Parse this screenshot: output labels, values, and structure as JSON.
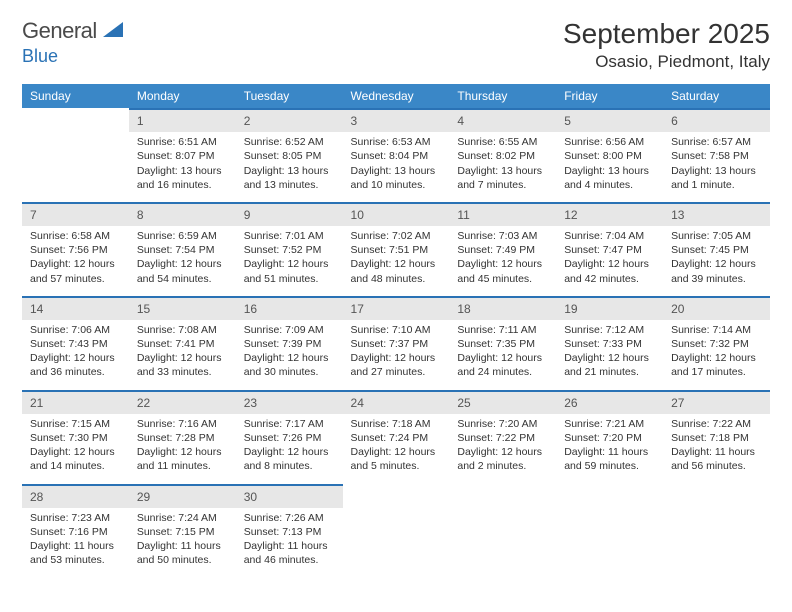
{
  "brand": {
    "general": "General",
    "blue": "Blue"
  },
  "title": {
    "month": "September 2025",
    "location": "Osasio, Piedmont, Italy"
  },
  "colors": {
    "header_bg": "#3a87c7",
    "border_top": "#2a72b5",
    "daynum_bg": "#e7e7e7",
    "text": "#333333",
    "logo_blue": "#2a72b5"
  },
  "weekdays": [
    "Sunday",
    "Monday",
    "Tuesday",
    "Wednesday",
    "Thursday",
    "Friday",
    "Saturday"
  ],
  "weeks": [
    [
      null,
      {
        "n": "1",
        "sr": "Sunrise: 6:51 AM",
        "ss": "Sunset: 8:07 PM",
        "dl": "Daylight: 13 hours and 16 minutes."
      },
      {
        "n": "2",
        "sr": "Sunrise: 6:52 AM",
        "ss": "Sunset: 8:05 PM",
        "dl": "Daylight: 13 hours and 13 minutes."
      },
      {
        "n": "3",
        "sr": "Sunrise: 6:53 AM",
        "ss": "Sunset: 8:04 PM",
        "dl": "Daylight: 13 hours and 10 minutes."
      },
      {
        "n": "4",
        "sr": "Sunrise: 6:55 AM",
        "ss": "Sunset: 8:02 PM",
        "dl": "Daylight: 13 hours and 7 minutes."
      },
      {
        "n": "5",
        "sr": "Sunrise: 6:56 AM",
        "ss": "Sunset: 8:00 PM",
        "dl": "Daylight: 13 hours and 4 minutes."
      },
      {
        "n": "6",
        "sr": "Sunrise: 6:57 AM",
        "ss": "Sunset: 7:58 PM",
        "dl": "Daylight: 13 hours and 1 minute."
      }
    ],
    [
      {
        "n": "7",
        "sr": "Sunrise: 6:58 AM",
        "ss": "Sunset: 7:56 PM",
        "dl": "Daylight: 12 hours and 57 minutes."
      },
      {
        "n": "8",
        "sr": "Sunrise: 6:59 AM",
        "ss": "Sunset: 7:54 PM",
        "dl": "Daylight: 12 hours and 54 minutes."
      },
      {
        "n": "9",
        "sr": "Sunrise: 7:01 AM",
        "ss": "Sunset: 7:52 PM",
        "dl": "Daylight: 12 hours and 51 minutes."
      },
      {
        "n": "10",
        "sr": "Sunrise: 7:02 AM",
        "ss": "Sunset: 7:51 PM",
        "dl": "Daylight: 12 hours and 48 minutes."
      },
      {
        "n": "11",
        "sr": "Sunrise: 7:03 AM",
        "ss": "Sunset: 7:49 PM",
        "dl": "Daylight: 12 hours and 45 minutes."
      },
      {
        "n": "12",
        "sr": "Sunrise: 7:04 AM",
        "ss": "Sunset: 7:47 PM",
        "dl": "Daylight: 12 hours and 42 minutes."
      },
      {
        "n": "13",
        "sr": "Sunrise: 7:05 AM",
        "ss": "Sunset: 7:45 PM",
        "dl": "Daylight: 12 hours and 39 minutes."
      }
    ],
    [
      {
        "n": "14",
        "sr": "Sunrise: 7:06 AM",
        "ss": "Sunset: 7:43 PM",
        "dl": "Daylight: 12 hours and 36 minutes."
      },
      {
        "n": "15",
        "sr": "Sunrise: 7:08 AM",
        "ss": "Sunset: 7:41 PM",
        "dl": "Daylight: 12 hours and 33 minutes."
      },
      {
        "n": "16",
        "sr": "Sunrise: 7:09 AM",
        "ss": "Sunset: 7:39 PM",
        "dl": "Daylight: 12 hours and 30 minutes."
      },
      {
        "n": "17",
        "sr": "Sunrise: 7:10 AM",
        "ss": "Sunset: 7:37 PM",
        "dl": "Daylight: 12 hours and 27 minutes."
      },
      {
        "n": "18",
        "sr": "Sunrise: 7:11 AM",
        "ss": "Sunset: 7:35 PM",
        "dl": "Daylight: 12 hours and 24 minutes."
      },
      {
        "n": "19",
        "sr": "Sunrise: 7:12 AM",
        "ss": "Sunset: 7:33 PM",
        "dl": "Daylight: 12 hours and 21 minutes."
      },
      {
        "n": "20",
        "sr": "Sunrise: 7:14 AM",
        "ss": "Sunset: 7:32 PM",
        "dl": "Daylight: 12 hours and 17 minutes."
      }
    ],
    [
      {
        "n": "21",
        "sr": "Sunrise: 7:15 AM",
        "ss": "Sunset: 7:30 PM",
        "dl": "Daylight: 12 hours and 14 minutes."
      },
      {
        "n": "22",
        "sr": "Sunrise: 7:16 AM",
        "ss": "Sunset: 7:28 PM",
        "dl": "Daylight: 12 hours and 11 minutes."
      },
      {
        "n": "23",
        "sr": "Sunrise: 7:17 AM",
        "ss": "Sunset: 7:26 PM",
        "dl": "Daylight: 12 hours and 8 minutes."
      },
      {
        "n": "24",
        "sr": "Sunrise: 7:18 AM",
        "ss": "Sunset: 7:24 PM",
        "dl": "Daylight: 12 hours and 5 minutes."
      },
      {
        "n": "25",
        "sr": "Sunrise: 7:20 AM",
        "ss": "Sunset: 7:22 PM",
        "dl": "Daylight: 12 hours and 2 minutes."
      },
      {
        "n": "26",
        "sr": "Sunrise: 7:21 AM",
        "ss": "Sunset: 7:20 PM",
        "dl": "Daylight: 11 hours and 59 minutes."
      },
      {
        "n": "27",
        "sr": "Sunrise: 7:22 AM",
        "ss": "Sunset: 7:18 PM",
        "dl": "Daylight: 11 hours and 56 minutes."
      }
    ],
    [
      {
        "n": "28",
        "sr": "Sunrise: 7:23 AM",
        "ss": "Sunset: 7:16 PM",
        "dl": "Daylight: 11 hours and 53 minutes."
      },
      {
        "n": "29",
        "sr": "Sunrise: 7:24 AM",
        "ss": "Sunset: 7:15 PM",
        "dl": "Daylight: 11 hours and 50 minutes."
      },
      {
        "n": "30",
        "sr": "Sunrise: 7:26 AM",
        "ss": "Sunset: 7:13 PM",
        "dl": "Daylight: 11 hours and 46 minutes."
      },
      null,
      null,
      null,
      null
    ]
  ]
}
